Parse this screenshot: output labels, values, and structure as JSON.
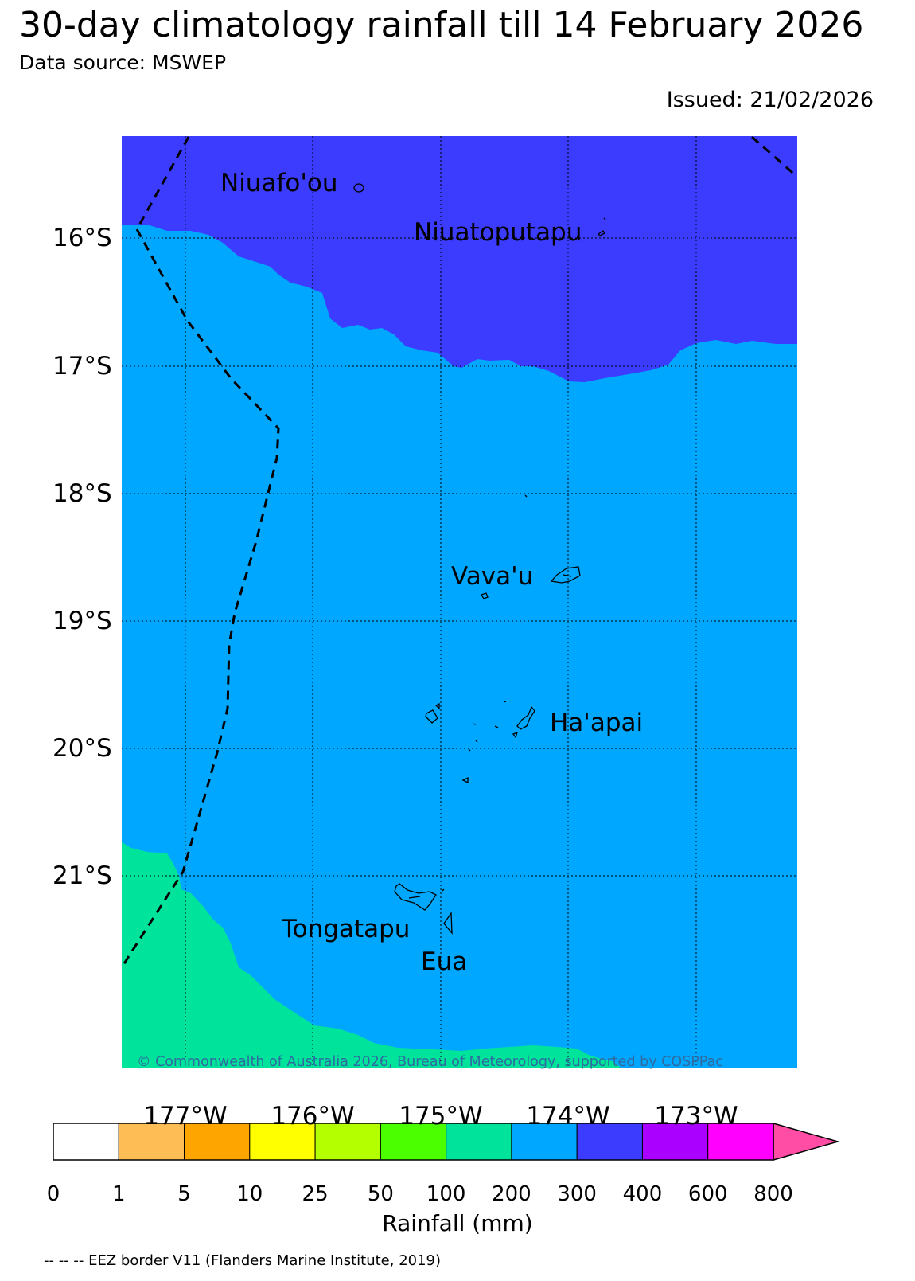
{
  "title": "30-day climatology rainfall till 14 February 2026",
  "subtitle": "Data source: MSWEP",
  "issued": "Issued: 21/02/2026",
  "map": {
    "extent": {
      "lon": [
        -177.5,
        -172.2
      ],
      "lat": [
        -15.25,
        -22.55
      ]
    },
    "latitude_labels": [
      "16°S",
      "17°S",
      "18°S",
      "19°S",
      "20°S",
      "21°S"
    ],
    "longitude_labels": [
      "177°W",
      "176°W",
      "175°W",
      "174°W",
      "173°W"
    ],
    "gridlines": true,
    "place_labels": [
      "Niuafo'ou",
      "Niuatoputapu",
      "Vava'u",
      "Ha'apai",
      "Tongatapu",
      "Eua"
    ],
    "rainfall_zones": [
      {
        "range": "300-400 mm",
        "color": "#3c3cff"
      },
      {
        "range": "200-300 mm",
        "color": "#00a7ff"
      },
      {
        "range": "100-200 mm",
        "color": "#00e39b"
      }
    ],
    "copyright": "© Commonwealth of Australia 2026, Bureau of Meteorology, supported by COSPPac"
  },
  "colorbar": {
    "label": "Rainfall (mm)",
    "ticks": [
      "0",
      "1",
      "5",
      "10",
      "25",
      "50",
      "100",
      "200",
      "300",
      "400",
      "600",
      "800"
    ],
    "colors": [
      "#ffffff",
      "#ffbe55",
      "#ffa500",
      "#ffff00",
      "#b4ff00",
      "#4cff00",
      "#00e39b",
      "#00a7ff",
      "#3c3cff",
      "#aa00ff",
      "#ff00ff"
    ],
    "extend_color": "#ff4da6"
  },
  "footnote": "-- -- -- EEZ border V11 (Flanders Marine Institute, 2019)"
}
